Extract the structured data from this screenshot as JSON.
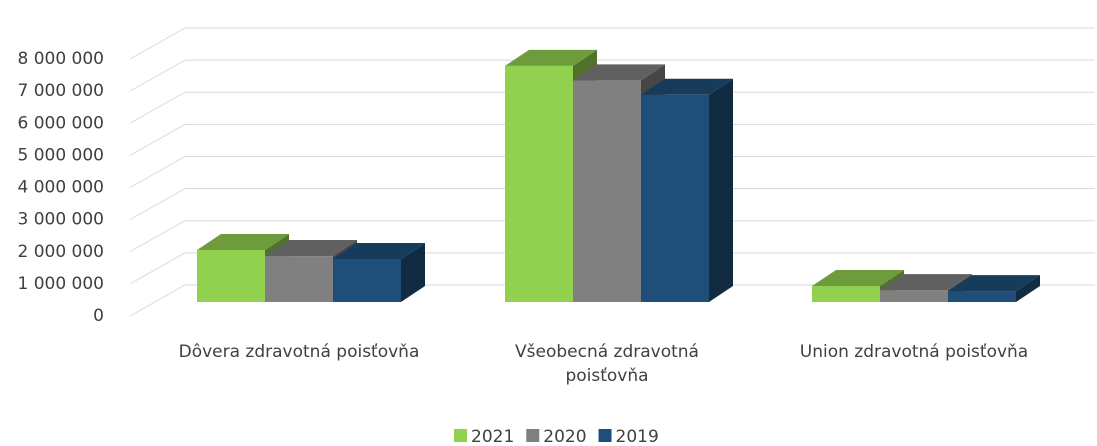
{
  "chart_data": {
    "type": "bar3d",
    "categories": [
      "Dôvera zdravotná poisťovňa",
      "Všeobecná zdravotná poisťovňa",
      "Union zdravotná poisťovňa"
    ],
    "series": [
      {
        "name": "2021",
        "color": "#92d050",
        "values": [
          1620000,
          7350000,
          500000
        ]
      },
      {
        "name": "2020",
        "color": "#808080",
        "values": [
          1430000,
          6900000,
          370000
        ]
      },
      {
        "name": "2019",
        "color": "#1f4e79",
        "values": [
          1340000,
          6450000,
          340000
        ]
      }
    ],
    "ylim": [
      0,
      8000000
    ],
    "yticks": [
      0,
      {
        "value": 1000000,
        "label": "1 000 000"
      },
      {
        "value": 2000000,
        "label": "2 000 000"
      },
      {
        "value": 3000000,
        "label": "3 000 000"
      },
      {
        "value": 4000000,
        "label": "4 000 000"
      },
      {
        "value": 5000000,
        "label": "5 000 000"
      },
      {
        "value": 6000000,
        "label": "6 000 000"
      },
      {
        "value": 7000000,
        "label": "7 000 000"
      },
      {
        "value": 8000000,
        "label": "8 000 000"
      }
    ],
    "grid": true,
    "legend": "bottom"
  }
}
